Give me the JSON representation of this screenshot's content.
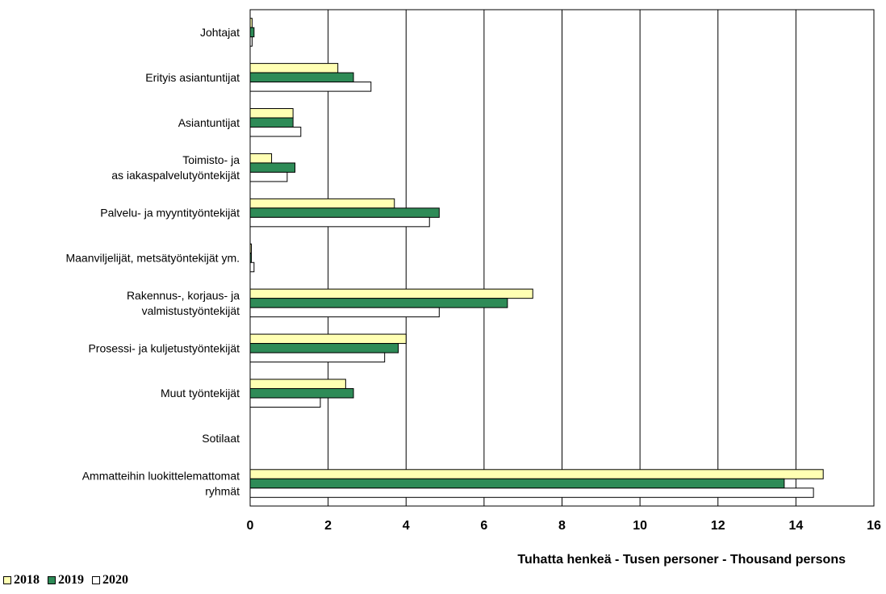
{
  "chart_data": {
    "type": "bar",
    "orientation": "horizontal",
    "xlabel": "Tuhatta henkeä - Tusen personer  - Thousand persons",
    "xlim": [
      0,
      16
    ],
    "xticks": [
      "0",
      "2",
      "4",
      "6",
      "8",
      "10",
      "12",
      "14",
      "16"
    ],
    "grid": "vertical",
    "legend_position": "bottom-left",
    "categories": [
      {
        "lines": [
          "Johtajat"
        ]
      },
      {
        "lines": [
          "Erityis asiantuntijat"
        ]
      },
      {
        "lines": [
          "Asiantuntijat"
        ]
      },
      {
        "lines": [
          "Toimisto- ja",
          "as iakaspalvelutyöntekijät"
        ]
      },
      {
        "lines": [
          "Palvelu- ja myyntityöntekijät"
        ]
      },
      {
        "lines": [
          "Maanviljelijät, metsätyöntekijät ym."
        ]
      },
      {
        "lines": [
          "Rakennus-, korjaus- ja",
          "valmistustyöntekijät"
        ]
      },
      {
        "lines": [
          "Prosessi- ja kuljetustyöntekijät"
        ]
      },
      {
        "lines": [
          "Muut työntekijät"
        ]
      },
      {
        "lines": [
          "Sotilaat"
        ]
      },
      {
        "lines": [
          "Ammatteihin luokittelemattomat",
          "ryhmät"
        ]
      }
    ],
    "series": [
      {
        "name": "2018",
        "color": "#ffffb3",
        "values": [
          0.05,
          2.25,
          1.1,
          0.55,
          3.7,
          0.02,
          7.25,
          4.0,
          2.45,
          0,
          14.7
        ]
      },
      {
        "name": "2019",
        "color": "#2e8b57",
        "values": [
          0.1,
          2.65,
          1.1,
          1.15,
          4.85,
          0.03,
          6.6,
          3.8,
          2.65,
          0,
          13.7
        ]
      },
      {
        "name": "2020",
        "color": "#ffffff",
        "values": [
          0.05,
          3.1,
          1.3,
          0.95,
          4.6,
          0.1,
          4.85,
          3.45,
          1.8,
          0,
          14.45
        ]
      }
    ]
  }
}
